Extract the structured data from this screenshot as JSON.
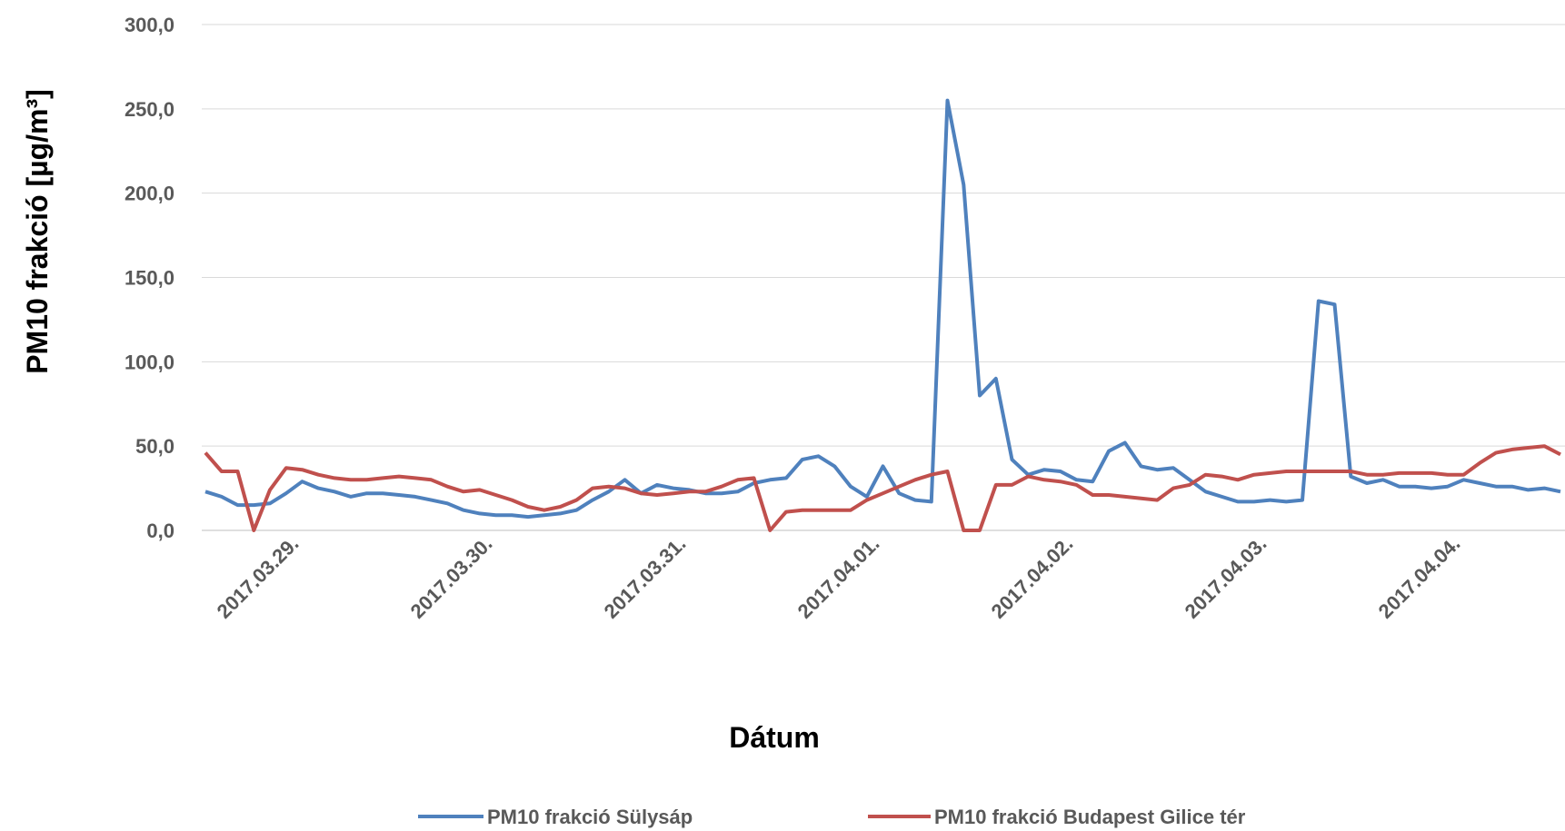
{
  "chart_data": {
    "type": "line",
    "xlabel": "Dátum",
    "ylabel": "PM10 frakció [µg/m³]",
    "ylim": [
      0,
      300
    ],
    "yticks": [
      "0,0",
      "50,0",
      "100,0",
      "150,0",
      "200,0",
      "250,0",
      "300,0"
    ],
    "xticks": [
      "2017.03.29.",
      "2017.03.30.",
      "2017.03.31.",
      "2017.04.01.",
      "2017.04.02.",
      "2017.04.03.",
      "2017.04.04."
    ],
    "x_unit": "hourly index within period (ticks every 24 h)",
    "grid": "horizontal",
    "legend_position": "bottom",
    "series": [
      {
        "name": "PM10 frakció Sülysáp",
        "color": "#4f81bd",
        "x": [
          0,
          2,
          4,
          6,
          8,
          10,
          12,
          14,
          16,
          18,
          20,
          22,
          24,
          26,
          28,
          30,
          32,
          34,
          36,
          38,
          40,
          42,
          44,
          46,
          48,
          50,
          52,
          54,
          56,
          58,
          60,
          62,
          64,
          66,
          68,
          70,
          72,
          74,
          76,
          78,
          80,
          82,
          84,
          86,
          88,
          90,
          92,
          94,
          96,
          98,
          100,
          102,
          104,
          106,
          108,
          110,
          112,
          114,
          116,
          118,
          120,
          122,
          124,
          126,
          128,
          130,
          132,
          134,
          136,
          138,
          140,
          142,
          144,
          146,
          148,
          150,
          152,
          154,
          156,
          158,
          160,
          162,
          164,
          166,
          168
        ],
        "values": [
          23,
          20,
          15,
          15,
          16,
          22,
          29,
          25,
          23,
          20,
          22,
          22,
          21,
          20,
          18,
          16,
          12,
          10,
          9,
          9,
          8,
          9,
          10,
          12,
          18,
          23,
          30,
          22,
          27,
          25,
          24,
          22,
          22,
          23,
          28,
          30,
          31,
          42,
          44,
          38,
          26,
          20,
          38,
          22,
          18,
          17,
          255,
          205,
          80,
          90,
          42,
          33,
          36,
          35,
          30,
          29,
          47,
          52,
          38,
          36,
          37,
          30,
          23,
          20,
          17,
          17,
          18,
          17,
          18,
          136,
          134,
          32,
          28,
          30,
          26,
          26,
          25,
          26,
          30,
          28,
          26,
          26,
          24,
          25,
          23
        ],
        "values_tail_note": ""
      },
      {
        "name": "PM10 frakció Budapest Gilice tér",
        "color": "#c0504d",
        "x": [
          0,
          2,
          4,
          6,
          8,
          10,
          12,
          14,
          16,
          18,
          20,
          22,
          24,
          26,
          28,
          30,
          32,
          34,
          36,
          38,
          40,
          42,
          44,
          46,
          48,
          50,
          52,
          54,
          56,
          58,
          60,
          62,
          64,
          66,
          68,
          70,
          72,
          74,
          76,
          78,
          80,
          82,
          84,
          86,
          88,
          90,
          92,
          94,
          96,
          98,
          100,
          102,
          104,
          106,
          108,
          110,
          112,
          114,
          116,
          118,
          120,
          122,
          124,
          126,
          128,
          130,
          132,
          134,
          136,
          138,
          140,
          142,
          144,
          146,
          148,
          150,
          152,
          154,
          156,
          158,
          160,
          162,
          164,
          166,
          168
        ],
        "values": [
          46,
          35,
          35,
          0,
          24,
          37,
          36,
          33,
          31,
          30,
          30,
          31,
          32,
          31,
          30,
          26,
          23,
          24,
          21,
          18,
          14,
          12,
          14,
          18,
          25,
          26,
          25,
          22,
          21,
          22,
          23,
          23,
          26,
          30,
          31,
          0,
          11,
          12,
          12,
          12,
          12,
          18,
          22,
          26,
          30,
          33,
          35,
          0,
          0,
          27,
          27,
          32,
          30,
          29,
          27,
          21,
          21,
          20,
          19,
          18,
          25,
          27,
          33,
          32,
          30,
          33,
          34,
          35,
          35,
          35,
          35,
          35,
          33,
          33,
          34,
          34,
          34,
          33,
          33,
          40,
          46,
          48,
          49,
          50,
          45
        ],
        "values_tail_note": ""
      }
    ]
  }
}
